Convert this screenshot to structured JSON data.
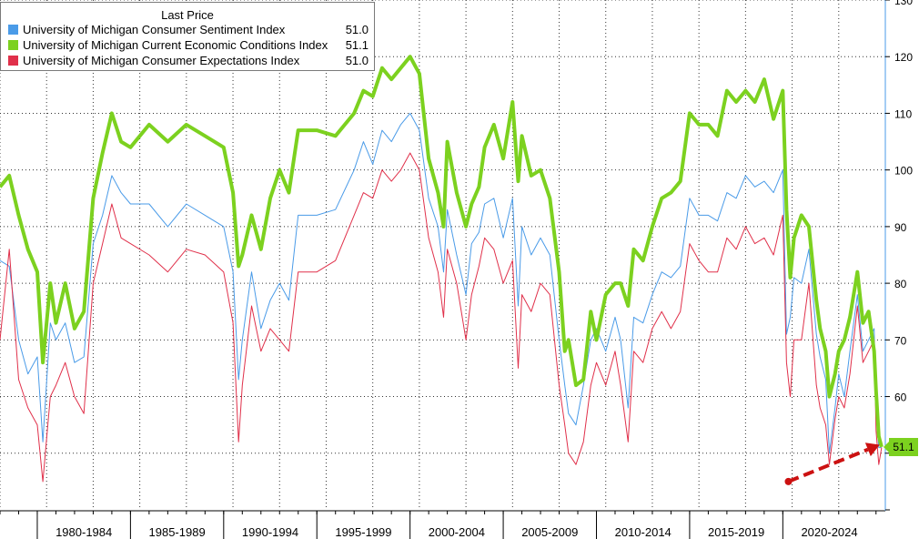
{
  "legend": {
    "title": "Last Price",
    "items": [
      {
        "label": "University of Michigan Consumer Sentiment Index",
        "value": "51.0",
        "color": "#4a9be8"
      },
      {
        "label": "University of Michigan Current Economic Conditions Index",
        "value": "51.1",
        "color": "#7cd11f"
      },
      {
        "label": "University of Michigan Consumer Expectations Index",
        "value": "51.0",
        "color": "#e0304a"
      }
    ]
  },
  "last_badge": "51.1",
  "chart_data": {
    "type": "line",
    "x_axis": {
      "range": [
        1978,
        2025.5
      ],
      "period_labels": [
        {
          "label": "1980-1984",
          "start": 1980,
          "end": 1985
        },
        {
          "label": "1985-1989",
          "start": 1985,
          "end": 1990
        },
        {
          "label": "1990-1994",
          "start": 1990,
          "end": 1995
        },
        {
          "label": "1995-1999",
          "start": 1995,
          "end": 2000
        },
        {
          "label": "2000-2004",
          "start": 2000,
          "end": 2005
        },
        {
          "label": "2005-2009",
          "start": 2005,
          "end": 2010
        },
        {
          "label": "2010-2014",
          "start": 2010,
          "end": 2015
        },
        {
          "label": "2015-2019",
          "start": 2015,
          "end": 2020
        },
        {
          "label": "2020-2024",
          "start": 2020,
          "end": 2025
        }
      ]
    },
    "y_axis": {
      "range": [
        40,
        130
      ],
      "ticks": [
        60,
        70,
        80,
        90,
        100,
        110,
        120,
        130
      ],
      "position": "right"
    },
    "grid": true,
    "legend_position": "top-left",
    "series": [
      {
        "name": "University of Michigan Consumer Sentiment Index",
        "color": "#4a9be8",
        "x": [
          1978.0,
          1978.5,
          1979.0,
          1979.5,
          1980.0,
          1980.3,
          1980.7,
          1981.0,
          1981.5,
          1982.0,
          1982.5,
          1983.0,
          1983.5,
          1984.0,
          1984.5,
          1985.0,
          1986.0,
          1987.0,
          1988.0,
          1989.0,
          1990.0,
          1990.5,
          1990.8,
          1991.0,
          1991.5,
          1992.0,
          1992.5,
          1993.0,
          1993.5,
          1994.0,
          1995.0,
          1996.0,
          1997.0,
          1997.5,
          1998.0,
          1998.5,
          1999.0,
          1999.5,
          2000.0,
          2000.5,
          2001.0,
          2001.5,
          2001.8,
          2002.0,
          2002.5,
          2003.0,
          2003.3,
          2003.7,
          2004.0,
          2004.5,
          2005.0,
          2005.5,
          2005.8,
          2006.0,
          2006.5,
          2007.0,
          2007.5,
          2008.0,
          2008.3,
          2008.5,
          2008.9,
          2009.3,
          2009.7,
          2010.0,
          2010.5,
          2011.0,
          2011.3,
          2011.7,
          2012.0,
          2012.5,
          2013.0,
          2013.5,
          2014.0,
          2014.5,
          2015.0,
          2015.5,
          2016.0,
          2016.5,
          2017.0,
          2017.5,
          2018.0,
          2018.5,
          2019.0,
          2019.5,
          2020.0,
          2020.2,
          2020.4,
          2020.6,
          2021.0,
          2021.4,
          2021.8,
          2022.0,
          2022.3,
          2022.5,
          2022.8,
          2023.0,
          2023.3,
          2023.6,
          2024.0,
          2024.3,
          2024.6,
          2024.9,
          2025.0,
          2025.15,
          2025.3
        ],
        "y": [
          84,
          83,
          70,
          64,
          67,
          52,
          73,
          70,
          73,
          66,
          67,
          87,
          92,
          99,
          96,
          94,
          94,
          90,
          94,
          92,
          90,
          82,
          63,
          70,
          82,
          72,
          77,
          80,
          77,
          92,
          92,
          93,
          100,
          105,
          101,
          107,
          105,
          108,
          110,
          107,
          95,
          90,
          82,
          93,
          85,
          78,
          87,
          89,
          94,
          95,
          88,
          95,
          76,
          90,
          85,
          88,
          85,
          70,
          62,
          57,
          55,
          62,
          70,
          72,
          68,
          74,
          70,
          58,
          74,
          73,
          78,
          82,
          81,
          83,
          95,
          92,
          92,
          91,
          96,
          95,
          99,
          97,
          98,
          96,
          100,
          71,
          74,
          81,
          80,
          86,
          71,
          67,
          63,
          50,
          58,
          64,
          60,
          68,
          78,
          68,
          70,
          72,
          57,
          51,
          51
        ]
      },
      {
        "name": "University of Michigan Current Economic Conditions Index",
        "color": "#7cd11f",
        "x": [
          1978.0,
          1978.5,
          1979.0,
          1979.5,
          1980.0,
          1980.3,
          1980.7,
          1981.0,
          1981.5,
          1982.0,
          1982.5,
          1983.0,
          1983.5,
          1984.0,
          1984.5,
          1985.0,
          1986.0,
          1987.0,
          1988.0,
          1989.0,
          1990.0,
          1990.5,
          1990.8,
          1991.0,
          1991.5,
          1992.0,
          1992.5,
          1993.0,
          1993.5,
          1994.0,
          1995.0,
          1996.0,
          1997.0,
          1997.5,
          1998.0,
          1998.5,
          1999.0,
          1999.5,
          2000.0,
          2000.5,
          2001.0,
          2001.5,
          2001.8,
          2002.0,
          2002.5,
          2003.0,
          2003.3,
          2003.7,
          2004.0,
          2004.5,
          2005.0,
          2005.5,
          2005.8,
          2006.0,
          2006.5,
          2007.0,
          2007.5,
          2008.0,
          2008.3,
          2008.5,
          2008.9,
          2009.3,
          2009.7,
          2010.0,
          2010.5,
          2011.0,
          2011.3,
          2011.7,
          2012.0,
          2012.5,
          2013.0,
          2013.5,
          2014.0,
          2014.5,
          2015.0,
          2015.5,
          2016.0,
          2016.5,
          2017.0,
          2017.5,
          2018.0,
          2018.5,
          2019.0,
          2019.5,
          2020.0,
          2020.2,
          2020.4,
          2020.6,
          2021.0,
          2021.4,
          2021.8,
          2022.0,
          2022.3,
          2022.5,
          2022.8,
          2023.0,
          2023.3,
          2023.6,
          2024.0,
          2024.3,
          2024.6,
          2024.9,
          2025.0,
          2025.15,
          2025.3
        ],
        "y": [
          97,
          99,
          92,
          86,
          82,
          66,
          80,
          73,
          80,
          72,
          75,
          95,
          103,
          110,
          105,
          104,
          108,
          105,
          108,
          106,
          104,
          96,
          83,
          85,
          92,
          86,
          95,
          100,
          96,
          107,
          107,
          106,
          110,
          114,
          113,
          118,
          116,
          118,
          120,
          117,
          102,
          96,
          90,
          105,
          96,
          90,
          94,
          97,
          104,
          108,
          102,
          112,
          98,
          106,
          99,
          100,
          95,
          82,
          68,
          70,
          62,
          63,
          75,
          70,
          78,
          80,
          80,
          76,
          86,
          84,
          90,
          95,
          96,
          98,
          110,
          108,
          108,
          106,
          114,
          112,
          114,
          112,
          116,
          109,
          114,
          93,
          81,
          88,
          92,
          90,
          77,
          72,
          68,
          60,
          64,
          68,
          70,
          74,
          82,
          73,
          75,
          68,
          61,
          53,
          51.1
        ]
      },
      {
        "name": "University of Michigan Consumer Expectations Index",
        "color": "#e0304a",
        "x": [
          1978.0,
          1978.5,
          1979.0,
          1979.5,
          1980.0,
          1980.3,
          1980.7,
          1981.0,
          1981.5,
          1982.0,
          1982.5,
          1983.0,
          1983.5,
          1984.0,
          1984.5,
          1985.0,
          1986.0,
          1987.0,
          1988.0,
          1989.0,
          1990.0,
          1990.5,
          1990.8,
          1991.0,
          1991.5,
          1992.0,
          1992.5,
          1993.0,
          1993.5,
          1994.0,
          1995.0,
          1996.0,
          1997.0,
          1997.5,
          1998.0,
          1998.5,
          1999.0,
          1999.5,
          2000.0,
          2000.5,
          2001.0,
          2001.5,
          2001.8,
          2002.0,
          2002.5,
          2003.0,
          2003.3,
          2003.7,
          2004.0,
          2004.5,
          2005.0,
          2005.5,
          2005.8,
          2006.0,
          2006.5,
          2007.0,
          2007.5,
          2008.0,
          2008.3,
          2008.5,
          2008.9,
          2009.3,
          2009.7,
          2010.0,
          2010.5,
          2011.0,
          2011.3,
          2011.7,
          2012.0,
          2012.5,
          2013.0,
          2013.5,
          2014.0,
          2014.5,
          2015.0,
          2015.5,
          2016.0,
          2016.5,
          2017.0,
          2017.5,
          2018.0,
          2018.5,
          2019.0,
          2019.5,
          2020.0,
          2020.2,
          2020.4,
          2020.6,
          2021.0,
          2021.4,
          2021.8,
          2022.0,
          2022.3,
          2022.5,
          2022.8,
          2023.0,
          2023.3,
          2023.6,
          2024.0,
          2024.3,
          2024.6,
          2024.9,
          2025.0,
          2025.15,
          2025.3
        ],
        "y": [
          70,
          86,
          63,
          58,
          55,
          45,
          60,
          62,
          66,
          60,
          57,
          80,
          87,
          94,
          88,
          87,
          85,
          82,
          86,
          85,
          82,
          73,
          52,
          62,
          76,
          68,
          72,
          70,
          68,
          82,
          82,
          84,
          92,
          96,
          95,
          100,
          98,
          100,
          103,
          100,
          88,
          82,
          74,
          86,
          80,
          70,
          78,
          83,
          88,
          86,
          80,
          84,
          65,
          78,
          75,
          80,
          78,
          62,
          55,
          50,
          48,
          52,
          62,
          66,
          62,
          68,
          62,
          52,
          68,
          66,
          72,
          75,
          72,
          75,
          87,
          84,
          82,
          82,
          88,
          86,
          90,
          87,
          88,
          85,
          92,
          66,
          60,
          70,
          70,
          80,
          62,
          58,
          55,
          48,
          56,
          60,
          58,
          64,
          76,
          66,
          68,
          70,
          54,
          48,
          51
        ]
      }
    ],
    "annotation": {
      "type": "arrow",
      "from": [
        2020.3,
        45
      ],
      "to": [
        2025.2,
        51.5
      ],
      "color": "#cc1111"
    }
  }
}
